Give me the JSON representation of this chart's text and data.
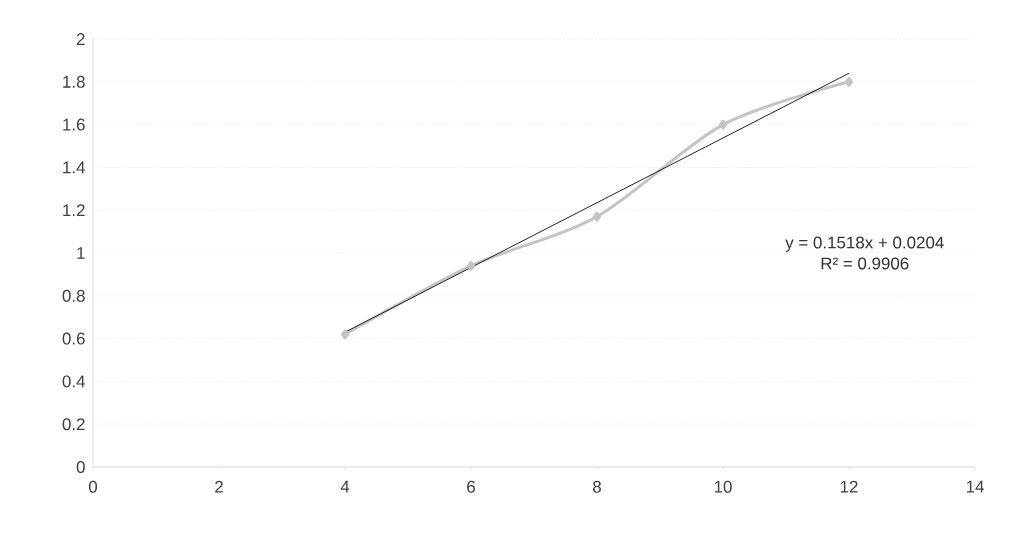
{
  "chart_data": {
    "type": "line",
    "x": [
      4,
      6,
      8,
      10,
      12
    ],
    "series": [
      {
        "color": "#c4c4c4",
        "marker": "diamond",
        "values": [
          0.62,
          0.94,
          1.17,
          1.6,
          1.8
        ]
      },
      {
        "color": "#222222",
        "marker": "none",
        "x": [
          4,
          12
        ],
        "values": [
          0.63,
          1.84
        ]
      }
    ],
    "xlim": [
      0,
      14
    ],
    "xticks": [
      0,
      2,
      4,
      6,
      8,
      10,
      12,
      14
    ],
    "ylim": [
      0,
      2
    ],
    "yticks": [
      0,
      0.2,
      0.4,
      0.6,
      0.8,
      1,
      1.2,
      1.4,
      1.6,
      1.8,
      2
    ],
    "grid": "y",
    "annotations": [
      "y = 0.1518x + 0.0204",
      "R² = 0.9906"
    ]
  }
}
